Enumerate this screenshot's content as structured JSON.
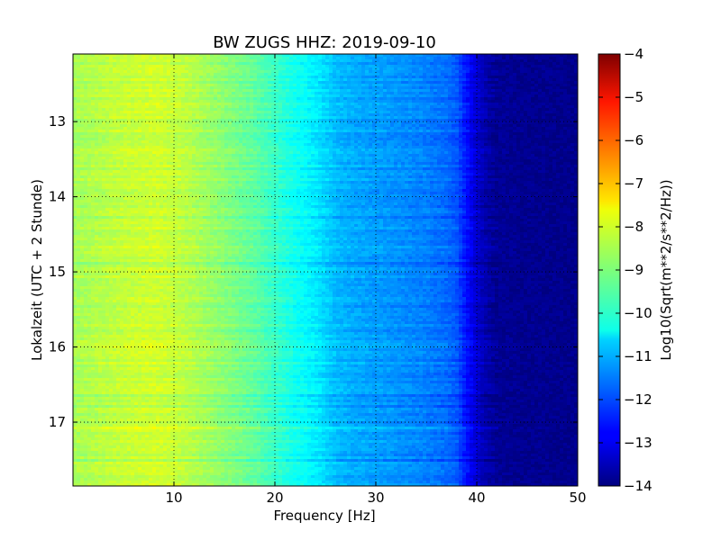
{
  "chart_data": {
    "type": "heatmap",
    "title": "BW ZUGS HHZ: 2019-09-10",
    "xlabel": "Frequency [Hz]",
    "ylabel": "Lokalzeit (UTC + 2 Stunde)",
    "xlim": [
      0,
      50
    ],
    "ylim": [
      12.1,
      17.85
    ],
    "y_inverted": true,
    "xticks": [
      10,
      20,
      30,
      40,
      50
    ],
    "xtick_labels": [
      "10",
      "20",
      "30",
      "40",
      "50"
    ],
    "yticks": [
      13,
      14,
      15,
      16,
      17
    ],
    "ytick_labels": [
      "13",
      "14",
      "15",
      "16",
      "17"
    ],
    "grid": true,
    "colormap": "jet",
    "colorbar": {
      "label": "Log10(Sqrt(m**2/s**2/Hz))",
      "range": [
        -14,
        -4
      ],
      "ticks": [
        -4,
        -5,
        -6,
        -7,
        -8,
        -9,
        -10,
        -11,
        -12,
        -13,
        -14
      ],
      "tick_labels": [
        "−4",
        "−5",
        "−6",
        "−7",
        "−8",
        "−9",
        "−10",
        "−11",
        "−12",
        "−13",
        "−14"
      ]
    },
    "spectrum_profile": {
      "frequency_hz": [
        0,
        2,
        5,
        8,
        10,
        12,
        15,
        18,
        20,
        22,
        24,
        26,
        28,
        30,
        32,
        35,
        37,
        38,
        39,
        40,
        41,
        42,
        45,
        50
      ],
      "value": [
        -8.6,
        -8.5,
        -8.3,
        -8.2,
        -8.3,
        -8.5,
        -8.9,
        -9.3,
        -9.7,
        -10.1,
        -10.4,
        -10.9,
        -11.1,
        -11.2,
        -11.3,
        -11.5,
        -11.7,
        -11.9,
        -12.6,
        -13.2,
        -13.6,
        -13.8,
        -13.85,
        -13.9
      ]
    }
  }
}
